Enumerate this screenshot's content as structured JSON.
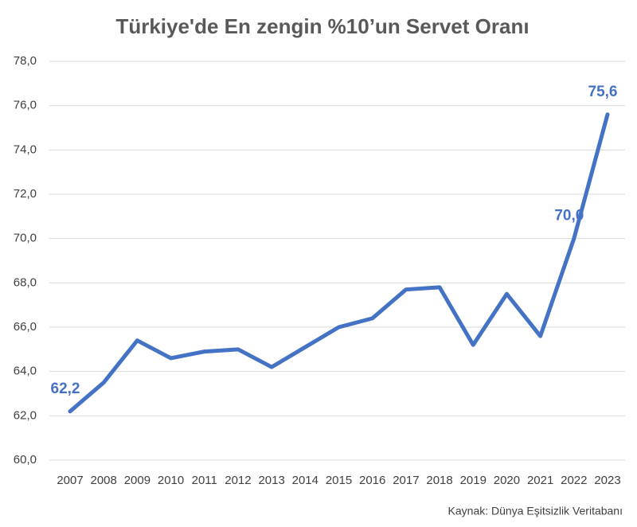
{
  "chart_data": {
    "type": "line",
    "title": "Türkiye'de En zengin %10’un Servet Oranı",
    "source": "Kaynak: Dünya Eşitsizlik Veritabanı",
    "x": [
      2007,
      2008,
      2009,
      2010,
      2011,
      2012,
      2013,
      2014,
      2015,
      2016,
      2017,
      2018,
      2019,
      2020,
      2021,
      2022,
      2023
    ],
    "xlim": [
      2007,
      2023
    ],
    "xticks": [
      2007,
      2008,
      2009,
      2010,
      2011,
      2012,
      2013,
      2014,
      2015,
      2016,
      2017,
      2018,
      2019,
      2020,
      2021,
      2022,
      2023
    ],
    "series": [
      {
        "color": "#4472c4",
        "values": [
          62.2,
          63.5,
          65.4,
          64.6,
          64.9,
          65.0,
          64.2,
          65.1,
          66.0,
          66.4,
          67.7,
          67.8,
          65.2,
          67.5,
          65.6,
          70.0,
          75.6
        ],
        "value_labels": [
          "62,2",
          null,
          null,
          null,
          null,
          null,
          null,
          null,
          null,
          null,
          null,
          null,
          null,
          null,
          null,
          "70,0",
          "75,6"
        ]
      }
    ],
    "ylim": [
      60,
      78
    ],
    "yticks": [
      {
        "value": 60,
        "label": "60,0"
      },
      {
        "value": 62,
        "label": "62,0"
      },
      {
        "value": 64,
        "label": "64,0"
      },
      {
        "value": 66,
        "label": "66,0"
      },
      {
        "value": 68,
        "label": "68,0"
      },
      {
        "value": 70,
        "label": "70,0"
      },
      {
        "value": 72,
        "label": "72,0"
      },
      {
        "value": 74,
        "label": "74,0"
      },
      {
        "value": 76,
        "label": "76,0"
      },
      {
        "value": 78,
        "label": "78,0"
      }
    ],
    "grid": true
  }
}
